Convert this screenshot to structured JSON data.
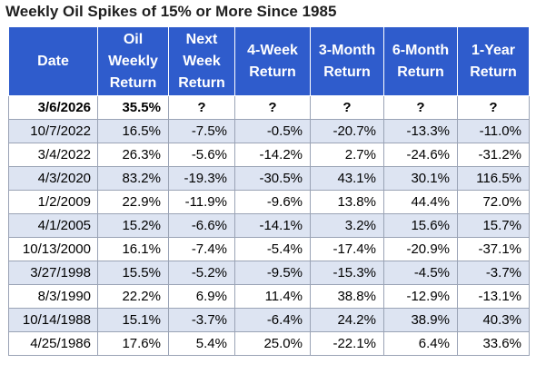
{
  "title": "Weekly Oil Spikes of 15% or More Since 1985",
  "table": {
    "headers": [
      "Date",
      "Oil\nWeekly\nReturn",
      "Next\nWeek\nReturn",
      "4-Week\nReturn",
      "3-Month\nReturn",
      "6-Month\nReturn",
      "1-Year\nReturn"
    ],
    "highlight_row": [
      "3/6/2026",
      "35.5%",
      "?",
      "?",
      "?",
      "?",
      "?"
    ],
    "rows": [
      [
        "10/7/2022",
        "16.5%",
        "-7.5%",
        "-0.5%",
        "-20.7%",
        "-13.3%",
        "-11.0%"
      ],
      [
        "3/4/2022",
        "26.3%",
        "-5.6%",
        "-14.2%",
        "2.7%",
        "-24.6%",
        "-31.2%"
      ],
      [
        "4/3/2020",
        "83.2%",
        "-19.3%",
        "-30.5%",
        "43.1%",
        "30.1%",
        "116.5%"
      ],
      [
        "1/2/2009",
        "22.9%",
        "-11.9%",
        "-9.6%",
        "13.8%",
        "44.4%",
        "72.0%"
      ],
      [
        "4/1/2005",
        "15.2%",
        "-6.6%",
        "-14.1%",
        "3.2%",
        "15.6%",
        "15.7%"
      ],
      [
        "10/13/2000",
        "16.1%",
        "-7.4%",
        "-5.4%",
        "-17.4%",
        "-20.9%",
        "-37.1%"
      ],
      [
        "3/27/1998",
        "15.5%",
        "-5.2%",
        "-9.5%",
        "-15.3%",
        "-4.5%",
        "-3.7%"
      ],
      [
        "8/3/1990",
        "22.2%",
        "6.9%",
        "11.4%",
        "38.8%",
        "-12.9%",
        "-13.1%"
      ],
      [
        "10/14/1988",
        "15.1%",
        "-3.7%",
        "-6.4%",
        "24.2%",
        "38.9%",
        "40.3%"
      ],
      [
        "4/25/1986",
        "17.6%",
        "5.4%",
        "25.0%",
        "-22.1%",
        "6.4%",
        "33.6%"
      ]
    ]
  },
  "colors": {
    "header_bg": "#2f5ccc",
    "header_text": "#ffffff",
    "stripe_bg": "#dde4f2"
  }
}
